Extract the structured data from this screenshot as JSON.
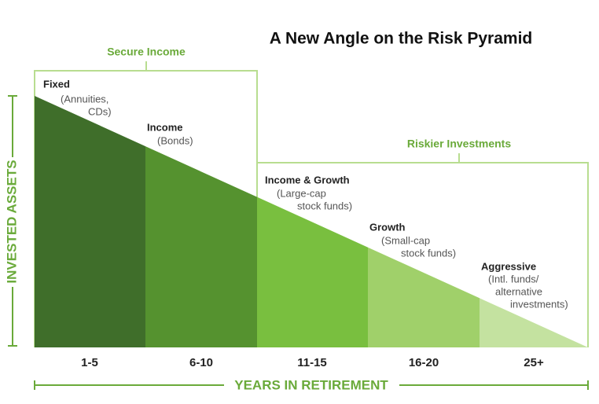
{
  "title": "A New Angle on the Risk Pyramid",
  "groups": [
    {
      "label": "Secure Income"
    },
    {
      "label": "Riskier Investments"
    }
  ],
  "segments": [
    {
      "name": "Fixed",
      "details": [
        "(Annuities,",
        "CDs)"
      ],
      "period": "1-5"
    },
    {
      "name": "Income",
      "details": [
        "(Bonds)"
      ],
      "period": "6-10"
    },
    {
      "name": "Income & Growth",
      "details": [
        "(Large-cap",
        "stock funds)"
      ],
      "period": "11-15"
    },
    {
      "name": "Growth",
      "details": [
        "(Small-cap",
        "stock funds)"
      ],
      "period": "16-20"
    },
    {
      "name": "Aggressive",
      "details": [
        "(Intl. funds/",
        "alternative",
        "investments)"
      ],
      "period": "25+"
    }
  ],
  "y_axis_label": "INVESTED ASSETS",
  "x_axis_label": "YEARS IN RETIREMENT"
}
